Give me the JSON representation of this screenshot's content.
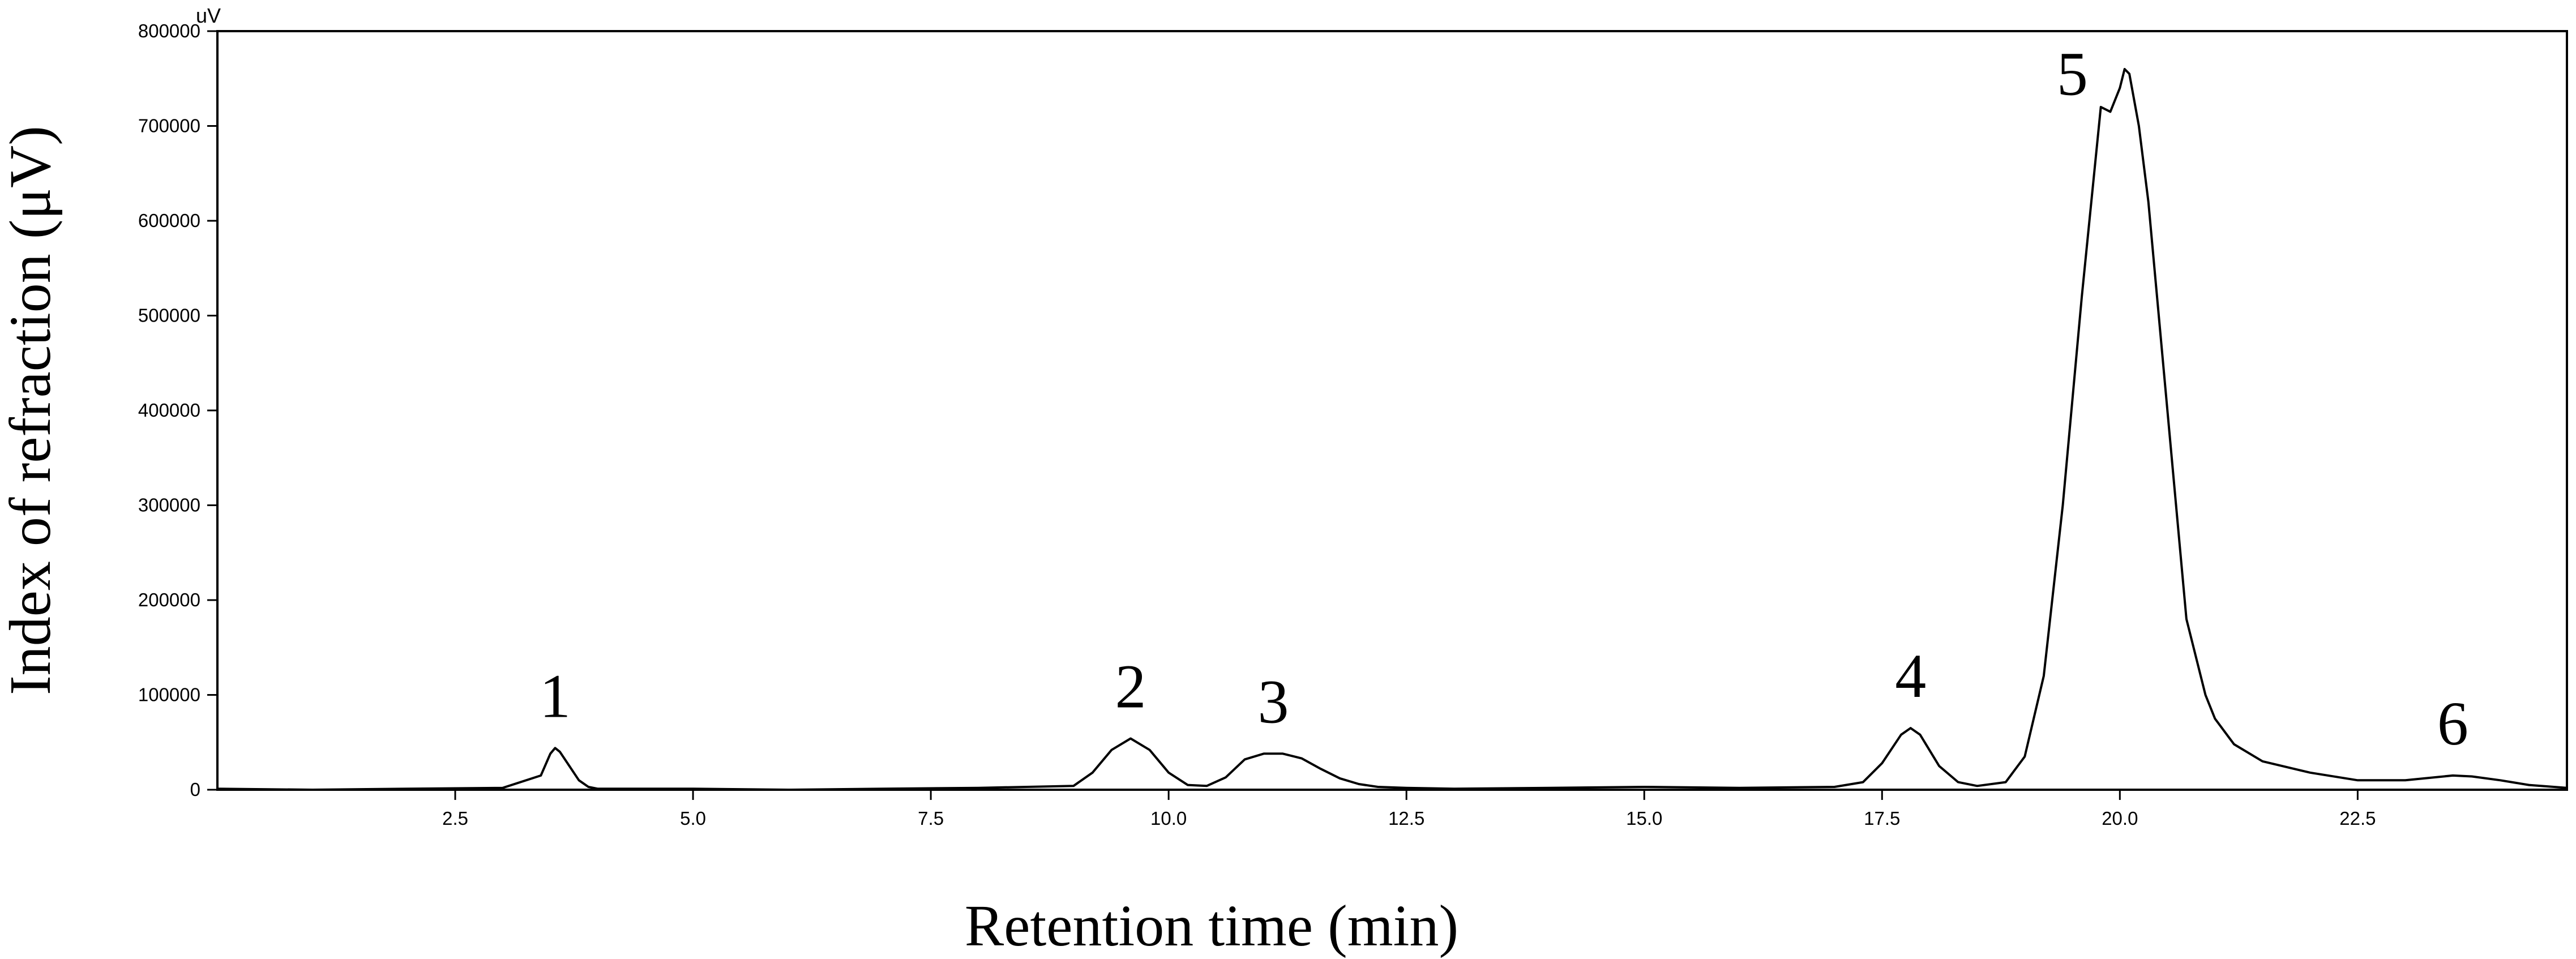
{
  "chart_data": {
    "type": "line",
    "title": "",
    "xlabel": "Retention time (min)",
    "ylabel": "Index of refraction (μV)",
    "y_unit_label": "uV",
    "xlim": [
      0,
      24.7
    ],
    "ylim": [
      0,
      800000
    ],
    "grid": false,
    "x_ticks": [
      2.5,
      5.0,
      7.5,
      10.0,
      12.5,
      15.0,
      17.5,
      20.0,
      22.5
    ],
    "x_tick_labels": [
      "2.5",
      "5.0",
      "7.5",
      "10.0",
      "12.5",
      "15.0",
      "17.5",
      "20.0",
      "22.5"
    ],
    "y_ticks": [
      0,
      100000,
      200000,
      300000,
      400000,
      500000,
      600000,
      700000,
      800000
    ],
    "y_tick_labels": [
      "0",
      "100000",
      "200000",
      "300000",
      "400000",
      "500000",
      "600000",
      "700000",
      "800000"
    ],
    "series": [
      {
        "color": "#000000",
        "x": [
          0,
          1.0,
          2.0,
          3.0,
          3.4,
          3.5,
          3.55,
          3.6,
          3.7,
          3.8,
          3.9,
          4.0,
          5.0,
          6.0,
          7.0,
          8.0,
          9.0,
          9.2,
          9.4,
          9.6,
          9.8,
          10.0,
          10.2,
          10.4,
          10.6,
          10.8,
          11.0,
          11.2,
          11.4,
          11.6,
          11.8,
          12.0,
          12.2,
          12.5,
          13.0,
          14.0,
          15.0,
          16.0,
          17.0,
          17.3,
          17.5,
          17.7,
          17.8,
          17.9,
          18.1,
          18.3,
          18.5,
          18.8,
          19.0,
          19.2,
          19.4,
          19.6,
          19.8,
          19.9,
          20.0,
          20.05,
          20.1,
          20.2,
          20.3,
          20.5,
          20.7,
          20.9,
          21.0,
          21.2,
          21.5,
          22.0,
          22.5,
          23.0,
          23.3,
          23.5,
          23.7,
          24.0,
          24.3,
          24.7
        ],
        "y": [
          1000,
          0,
          1000,
          2000,
          15000,
          38000,
          44000,
          40000,
          25000,
          10000,
          3000,
          1000,
          1000,
          0,
          1000,
          2000,
          4000,
          18000,
          42000,
          54000,
          42000,
          18000,
          5000,
          4000,
          13000,
          32000,
          38000,
          38000,
          33000,
          22000,
          12000,
          6000,
          3000,
          2000,
          1000,
          2000,
          3000,
          2000,
          3000,
          8000,
          28000,
          58000,
          65000,
          58000,
          25000,
          8000,
          4000,
          8000,
          35000,
          120000,
          300000,
          520000,
          720000,
          715000,
          740000,
          760000,
          755000,
          700000,
          620000,
          400000,
          180000,
          100000,
          75000,
          48000,
          30000,
          18000,
          10000,
          10000,
          13000,
          15000,
          14000,
          10000,
          5000,
          2000
        ]
      }
    ],
    "annotations": [
      {
        "text": "1",
        "x": 3.55,
        "y": 44000
      },
      {
        "text": "2",
        "x": 9.6,
        "y": 54000
      },
      {
        "text": "3",
        "x": 11.1,
        "y": 38000
      },
      {
        "text": "4",
        "x": 17.8,
        "y": 65000
      },
      {
        "text": "5",
        "x": 19.5,
        "y": 700000
      },
      {
        "text": "6",
        "x": 23.5,
        "y": 15000
      }
    ]
  }
}
